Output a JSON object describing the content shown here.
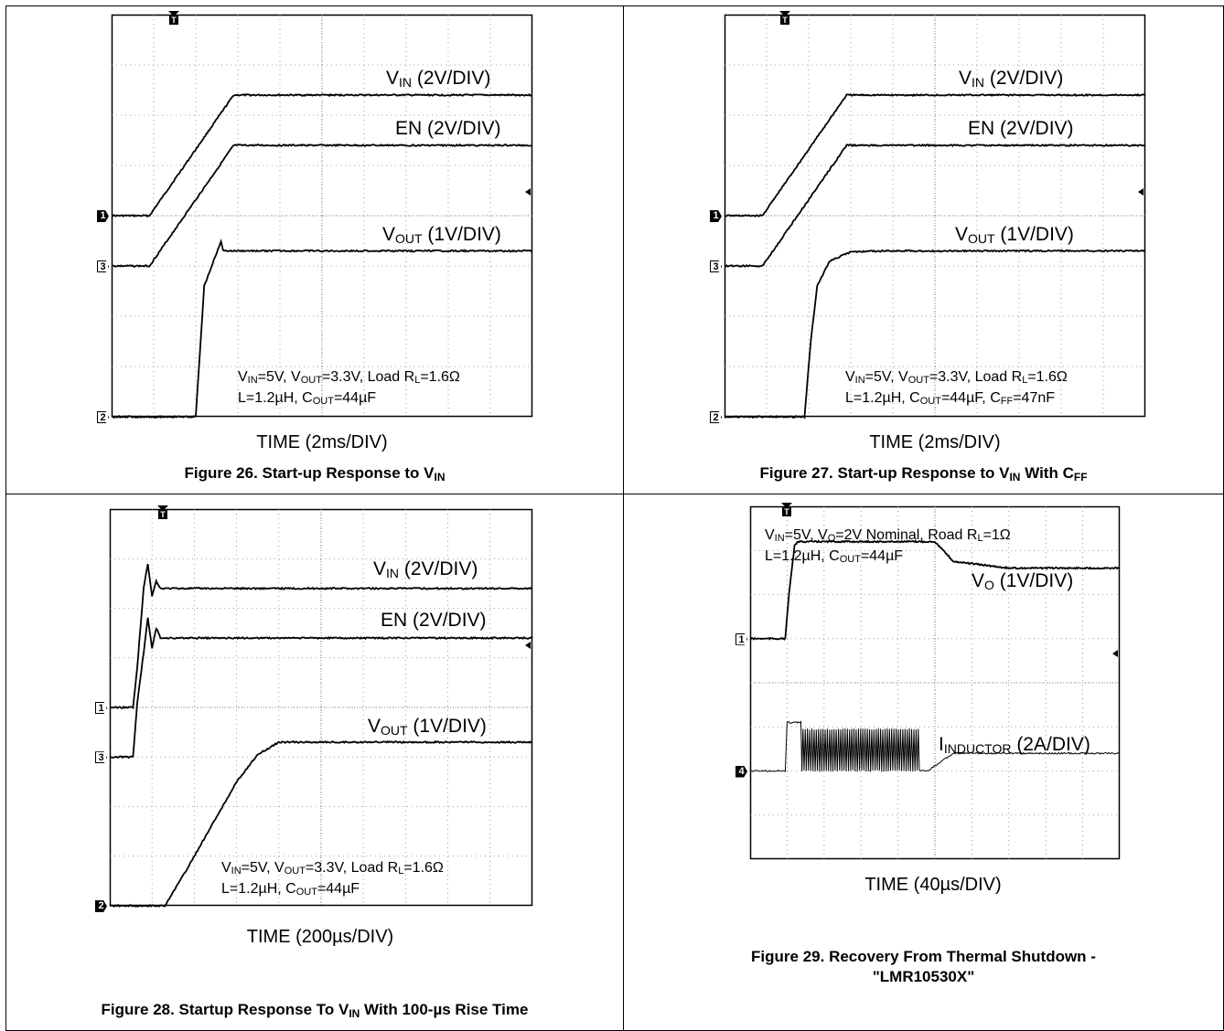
{
  "chart_data": [
    {
      "type": "line",
      "caption": "Figure 26. Start-up Response to V",
      "caption_sub": "IN",
      "caption_tail": "",
      "xlabel": "TIME (2ms/DIV)",
      "x_divisions": 10,
      "y_divisions": 8,
      "x_div_unit": "ms",
      "series": [
        {
          "name": "V",
          "sub": "IN",
          "name_tail": " (2V/DIV)",
          "ground_div": 4,
          "scale_per_div": 2,
          "marker": "1",
          "marker_style": "solid",
          "points": [
            [
              0,
              0
            ],
            [
              0.9,
              0
            ],
            [
              2.9,
              4.8
            ],
            [
              8,
              4.8
            ],
            [
              10,
              4.8
            ]
          ]
        },
        {
          "name": "EN",
          "sub": "",
          "name_tail": " (2V/DIV)",
          "ground_div": 3,
          "scale_per_div": 2,
          "marker": "3",
          "marker_style": "open",
          "points": [
            [
              0,
              0
            ],
            [
              0.9,
              0
            ],
            [
              2.9,
              4.8
            ],
            [
              10,
              4.8
            ]
          ]
        },
        {
          "name": "V",
          "sub": "OUT",
          "name_tail": " (1V/DIV)",
          "ground_div": 0,
          "scale_per_div": 1,
          "marker": "2",
          "marker_style": "open",
          "points": [
            [
              0,
              0
            ],
            [
              2,
              0
            ],
            [
              2.2,
              2.6
            ],
            [
              2.6,
              3.5
            ],
            [
              2.65,
              3.3
            ],
            [
              10,
              3.3
            ]
          ]
        }
      ],
      "notes": [
        [
          "V",
          "IN",
          "=5V, V",
          "OUT",
          "=3.3V, Load R",
          "L",
          "=1.6Ω"
        ],
        [
          "L=1.2µH, C",
          "OUT",
          "=44µF"
        ]
      ]
    },
    {
      "type": "line",
      "caption": "Figure 27. Start-up Response to V",
      "caption_sub": "IN",
      "caption_tail": " With C",
      "caption_tail_sub": "FF",
      "xlabel": "TIME (2ms/DIV)",
      "x_divisions": 10,
      "y_divisions": 8,
      "x_div_unit": "ms",
      "series": [
        {
          "name": "V",
          "sub": "IN",
          "name_tail": " (2V/DIV)",
          "ground_div": 4,
          "scale_per_div": 2,
          "marker": "1",
          "marker_style": "solid",
          "points": [
            [
              0,
              0
            ],
            [
              0.9,
              0
            ],
            [
              2.9,
              4.8
            ],
            [
              10,
              4.8
            ]
          ]
        },
        {
          "name": "EN",
          "sub": "",
          "name_tail": " (2V/DIV)",
          "ground_div": 3,
          "scale_per_div": 2,
          "marker": "3",
          "marker_style": "open",
          "points": [
            [
              0,
              0
            ],
            [
              0.9,
              0
            ],
            [
              2.9,
              4.8
            ],
            [
              10,
              4.8
            ]
          ]
        },
        {
          "name": "V",
          "sub": "OUT",
          "name_tail": " (1V/DIV)",
          "ground_div": 0,
          "scale_per_div": 1,
          "marker": "2",
          "marker_style": "open",
          "points": [
            [
              0,
              0
            ],
            [
              1.9,
              0
            ],
            [
              2.05,
              1.5
            ],
            [
              2.2,
              2.6
            ],
            [
              2.5,
              3.1
            ],
            [
              3,
              3.28
            ],
            [
              3.8,
              3.3
            ],
            [
              10,
              3.3
            ]
          ]
        }
      ],
      "notes": [
        [
          "V",
          "IN",
          "=5V, V",
          "OUT",
          "=3.3V, Load R",
          "L",
          "=1.6Ω"
        ],
        [
          "L=1.2µH, C",
          "OUT",
          "=44µF, C",
          "FF",
          "=47nF"
        ]
      ]
    },
    {
      "type": "line",
      "caption": "Figure 28. Startup Response To V",
      "caption_sub": "IN",
      "caption_tail": " With 100-µs Rise Time",
      "xlabel": "TIME (200µs/DIV)",
      "x_divisions": 10,
      "y_divisions": 8,
      "x_div_unit": "µs",
      "series": [
        {
          "name": "V",
          "sub": "IN",
          "name_tail": " (2V/DIV)",
          "ground_div": 4,
          "scale_per_div": 2,
          "marker": "1",
          "marker_style": "open",
          "points": [
            [
              0,
              0
            ],
            [
              0.55,
              0
            ],
            [
              0.65,
              1.6
            ],
            [
              0.8,
              4.8
            ],
            [
              0.9,
              5.8
            ],
            [
              1.0,
              4.5
            ],
            [
              1.1,
              5.1
            ],
            [
              1.2,
              4.8
            ],
            [
              10,
              4.8
            ]
          ]
        },
        {
          "name": "EN",
          "sub": "",
          "name_tail": " (2V/DIV)",
          "ground_div": 3,
          "scale_per_div": 2,
          "marker": "3",
          "marker_style": "open",
          "points": [
            [
              0,
              0
            ],
            [
              0.55,
              0
            ],
            [
              0.65,
              2.2
            ],
            [
              0.8,
              4.2
            ],
            [
              0.9,
              5.6
            ],
            [
              1.0,
              4.4
            ],
            [
              1.1,
              5.2
            ],
            [
              1.2,
              4.8
            ],
            [
              10,
              4.8
            ]
          ]
        },
        {
          "name": "V",
          "sub": "OUT",
          "name_tail": " (1V/DIV)",
          "ground_div": 0,
          "scale_per_div": 1,
          "marker": "2",
          "marker_style": "solid",
          "points": [
            [
              0,
              0
            ],
            [
              1.3,
              0
            ],
            [
              1.8,
              0.7
            ],
            [
              2.4,
              1.6
            ],
            [
              3.0,
              2.5
            ],
            [
              3.5,
              3.05
            ],
            [
              4.0,
              3.3
            ],
            [
              10,
              3.3
            ]
          ]
        }
      ],
      "notes": [
        [
          "V",
          "IN",
          "=5V, V",
          "OUT",
          "=3.3V, Load R",
          "L",
          "=1.6Ω"
        ],
        [
          "L=1.2µH, C",
          "OUT",
          "=44µF"
        ]
      ]
    },
    {
      "type": "line",
      "caption": "Figure 29. Recovery From Thermal Shutdown -",
      "caption2": "\"LMR10530X\"",
      "xlabel": "TIME (40µs/DIV)",
      "x_divisions": 10,
      "y_divisions": 8,
      "x_div_unit": "µs",
      "series": [
        {
          "name": "V",
          "sub": "O",
          "name_tail": " (1V/DIV)",
          "ground_div": 5,
          "scale_per_div": 1,
          "marker": "1",
          "marker_style": "open",
          "points": [
            [
              0,
              0
            ],
            [
              0.95,
              0
            ],
            [
              1.05,
              1.0
            ],
            [
              1.2,
              2.1
            ],
            [
              1.3,
              2.2
            ],
            [
              5,
              2.2
            ],
            [
              5.5,
              1.75
            ],
            [
              7,
              1.6
            ],
            [
              10,
              1.6
            ]
          ]
        },
        {
          "name": "I",
          "sub": "INDUCTOR",
          "name_tail": " (2A/DIV)",
          "ground_div": 2,
          "scale_per_div": 2,
          "marker": "4",
          "marker_style": "solid",
          "points": [
            [
              0,
              0
            ],
            [
              0.95,
              0
            ],
            [
              1.0,
              2.2
            ],
            [
              1.4,
              2.2
            ],
            [
              1.45,
              0
            ],
            [
              4.8,
              0
            ],
            [
              5.5,
              0.8
            ],
            [
              10,
              0.8
            ]
          ],
          "oscillation": {
            "from": 1.4,
            "to": 4.6,
            "low": 0,
            "high": 1.9,
            "period_div": 0.06
          }
        }
      ],
      "notes": [
        [
          "V",
          "IN",
          "=5V, V",
          "O",
          "=2V Nominal, Road R",
          "L",
          "=1Ω"
        ],
        [
          "L=1.2µH, C",
          "OUT",
          "=44µF"
        ]
      ]
    }
  ]
}
